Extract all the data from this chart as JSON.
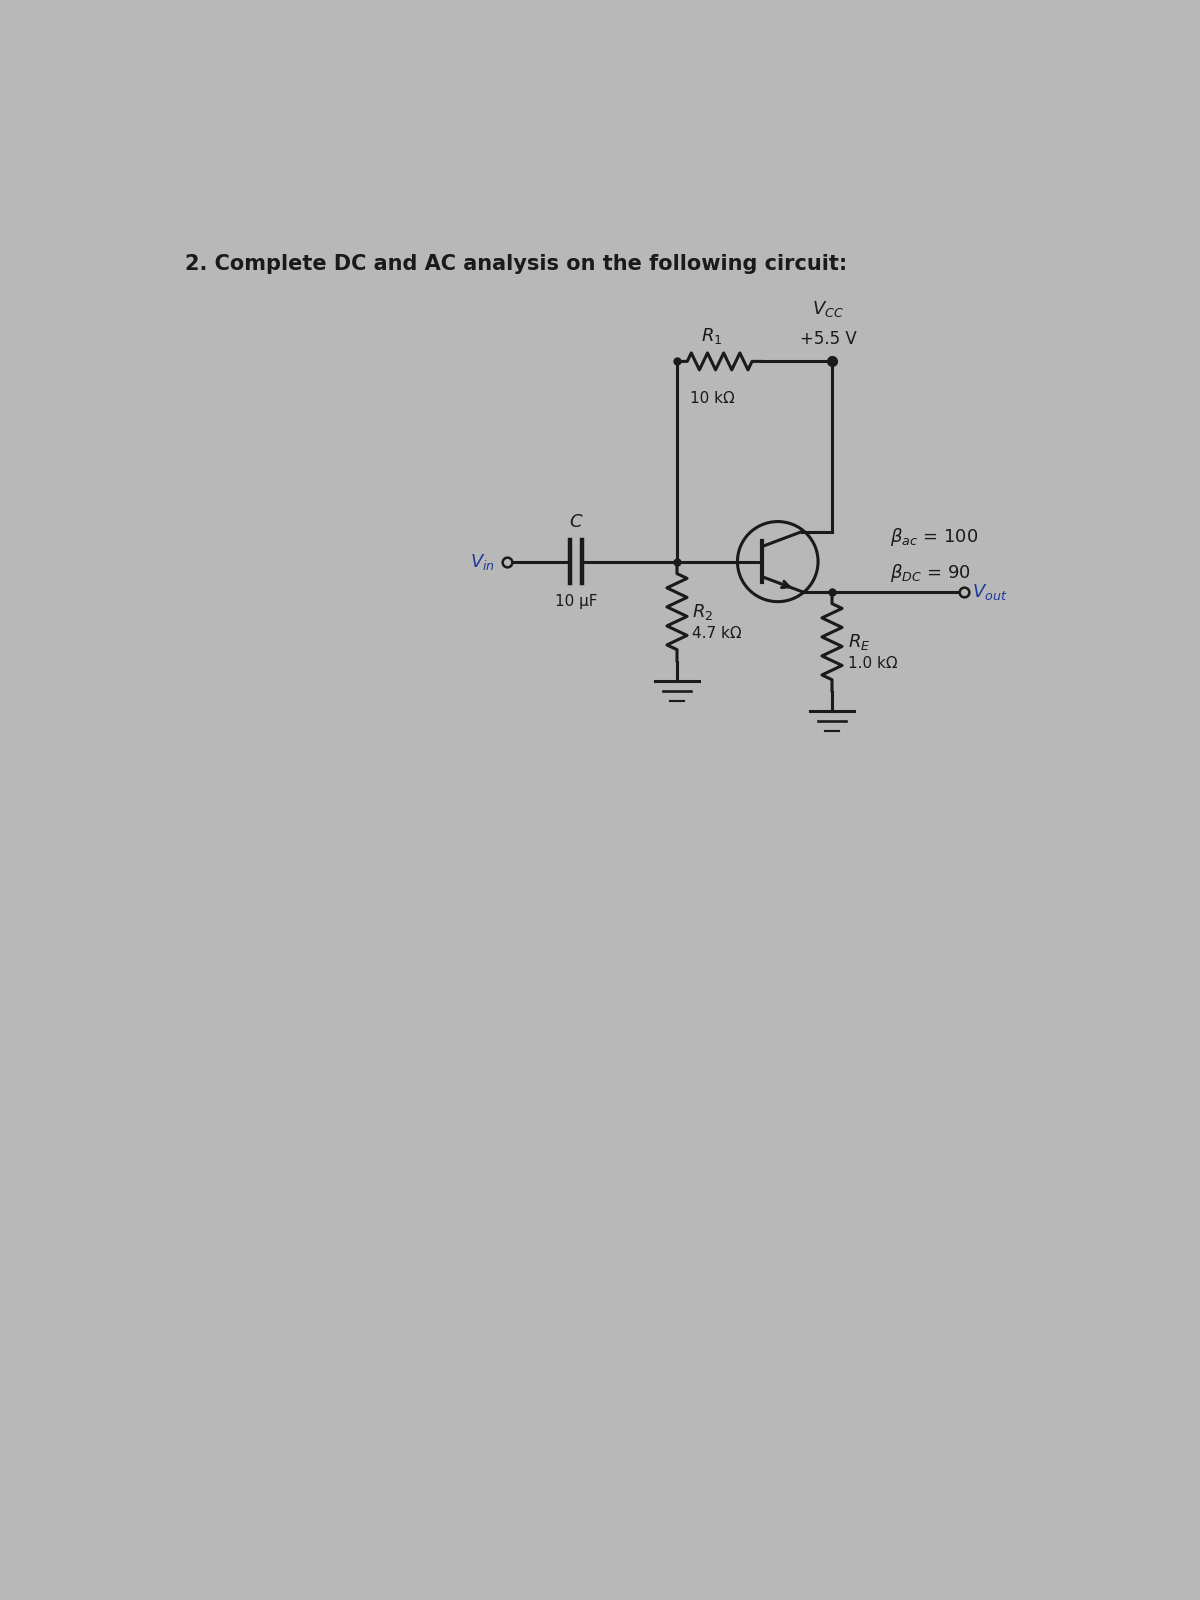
{
  "title": "2. Complete DC and AC analysis on the following circuit:",
  "title_color": "#1a1a1a",
  "title_fontsize": 15,
  "bg_color": "#b8b8b8",
  "circuit_color": "#1a1a1a",
  "blue_color": "#1a3a99",
  "Vcc_val": "+5.5 V",
  "R1_val": "10 kΩ",
  "R2_val": "4.7 kΩ",
  "RE_val": "1.0 kΩ",
  "C_val": "10 μF",
  "beta_ac_val": "= 100",
  "beta_dc_val": "= 90"
}
